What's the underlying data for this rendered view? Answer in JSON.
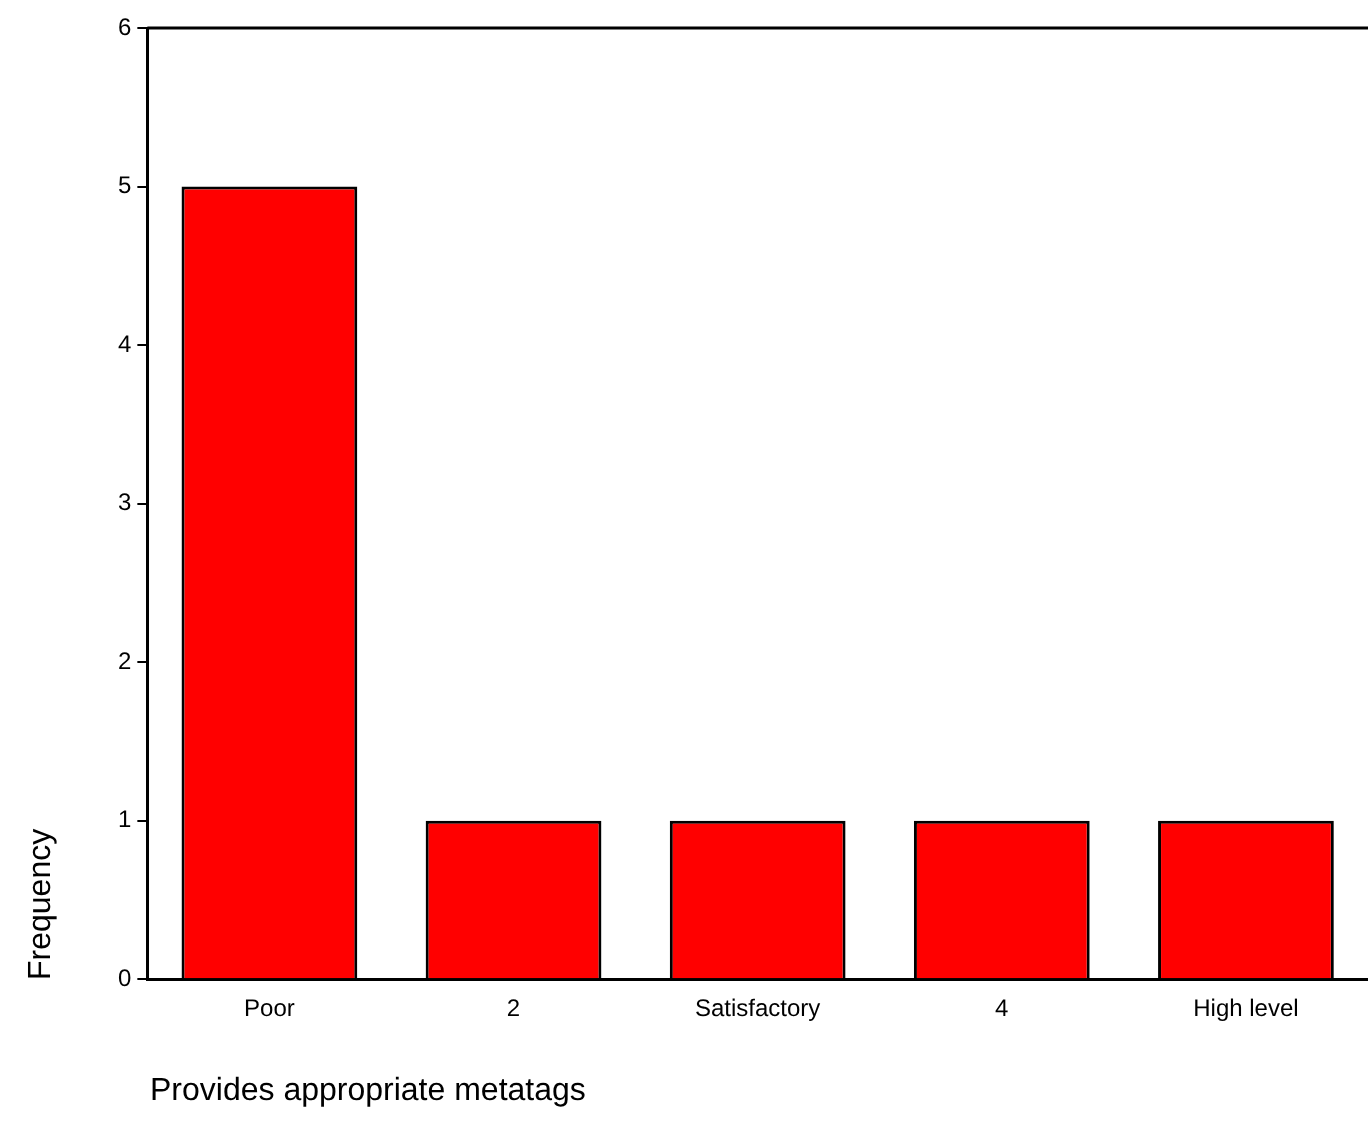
{
  "chart_data": {
    "type": "bar",
    "xlabel": "Provides appropriate metatags",
    "ylabel": "Frequency",
    "categories": [
      "Poor",
      "2",
      "Satisfactory",
      "4",
      "High level"
    ],
    "values": [
      5,
      1,
      1,
      1,
      1
    ],
    "color": "#ff0000",
    "ylim": [
      0,
      6
    ],
    "yticks": [
      0,
      1,
      2,
      3,
      4,
      5,
      6
    ]
  }
}
